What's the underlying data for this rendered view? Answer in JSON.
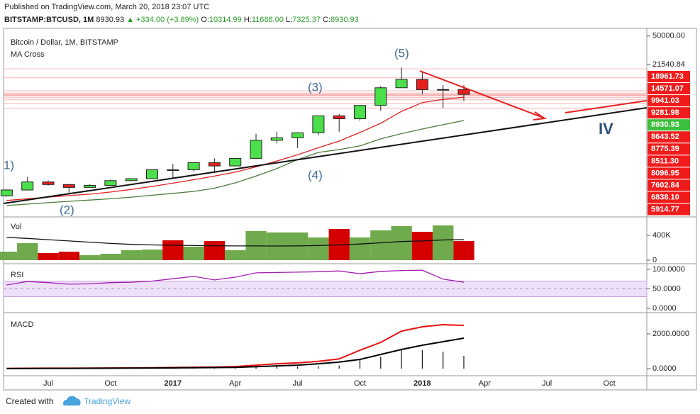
{
  "header": {
    "published": "Published on TradingView.com, March 20, 2018 23:07 UTC",
    "symbol": "BITSTAMP:BTCUSD, 1M",
    "last": "8930.93",
    "change": "▲ +334.00 (+3.89%)",
    "ohlc": [
      {
        "label": "O:",
        "value": "10314.99"
      },
      {
        "label": "H:",
        "value": "11688.00"
      },
      {
        "label": "L:",
        "value": "7325.37"
      },
      {
        "label": "C:",
        "value": "8930.93"
      }
    ]
  },
  "chart_data": [
    {
      "type": "candlestick",
      "title": "Bitcoin / Dollar, 1M, BITSTAMP",
      "subtitle": "MA Cross",
      "log": true,
      "categories": [
        null,
        null,
        "Jul",
        null,
        null,
        "Oct",
        null,
        null,
        "2017",
        null,
        null,
        "Apr",
        null,
        null,
        "Jul",
        null,
        null,
        "Oct",
        null,
        null,
        "2018",
        null,
        null,
        "Apr",
        null,
        null,
        "Jul",
        null,
        null,
        "Oct"
      ],
      "open": [
        448,
        531,
        673,
        624,
        573,
        609,
        700,
        742,
        964,
        965,
        1190,
        1080,
        1350,
        2300,
        2480,
        2870,
        4735,
        4350,
        6440,
        10850,
        13880,
        10270,
        10314.99,
        null,
        null,
        null,
        null,
        null,
        null,
        null
      ],
      "high": [
        541,
        777,
        704,
        628,
        630,
        720,
        750,
        970,
        1150,
        1200,
        1350,
        1350,
        2790,
        2980,
        2920,
        4740,
        4980,
        6470,
        11400,
        19666,
        17170,
        11780,
        11688,
        null,
        null,
        null,
        null,
        null,
        null,
        null
      ],
      "low": [
        436,
        531,
        606,
        480,
        565,
        605,
        690,
        740,
        750,
        915,
        890,
        1075,
        1350,
        2100,
        1830,
        2670,
        2970,
        4110,
        5500,
        10800,
        9030,
        5970,
        7325.37,
        null,
        null,
        null,
        null,
        null,
        null,
        null
      ],
      "close": [
        531,
        673,
        624,
        573,
        609,
        700,
        742,
        964,
        965,
        1190,
        1080,
        1350,
        2300,
        2480,
        2870,
        4735,
        4350,
        6440,
        10850,
        13880,
        10270,
        10314.99,
        8930.93,
        null,
        null,
        null,
        null,
        null,
        null,
        null
      ],
      "up_color": "#4be04b",
      "down_color": "#e81e1e",
      "series": [
        {
          "color": "#e02020",
          "values": [
            390,
            410,
            430,
            450,
            470,
            500,
            540,
            590,
            650,
            720,
            800,
            900,
            1050,
            1250,
            1500,
            1850,
            2250,
            2900,
            3800,
            5400,
            7000,
            7700,
            8200,
            null,
            null,
            null,
            null,
            null,
            null,
            null
          ]
        },
        {
          "color": "#4d7a3a",
          "values": [
            336,
            350,
            365,
            380,
            395,
            410,
            430,
            455,
            480,
            510,
            560,
            655,
            800,
            1000,
            1300,
            1610,
            1750,
            1950,
            2400,
            2800,
            3210,
            3650,
            4130,
            null,
            null,
            null,
            null,
            null,
            null,
            null
          ]
        }
      ],
      "ylim": [
        272,
        60050
      ],
      "yticks": [
        {
          "value": 50000,
          "label": "50000.00"
        },
        21540.84
      ],
      "levels": [
        {
          "value": 18961.73,
          "color": "#f01c1c"
        },
        {
          "value": 14571.07,
          "color": "#f01c1c"
        },
        {
          "value": 9941.03,
          "color": "#f01c1c"
        },
        {
          "value": 9281.98,
          "color": "#f01c1c"
        },
        {
          "value": 8930.93,
          "color": "#3cbf3c"
        },
        {
          "value": 8643.52,
          "color": "#f01c1c"
        },
        {
          "value": 8775.39,
          "color": "#f01c1c"
        },
        {
          "value": 8511.3,
          "label": "8511.30",
          "color": "#f01c1c"
        },
        {
          "value": 8096.95,
          "color": "#f01c1c"
        },
        {
          "value": 7602.84,
          "color": "#f01c1c"
        },
        {
          "value": 6838.1,
          "label": "6838.10",
          "color": "#f01c1c"
        },
        {
          "value": 5914.77,
          "color": "#f01c1c"
        }
      ],
      "annotations": [
        "(5)",
        "(3)",
        "(4)",
        "(2)",
        "1)",
        "IV"
      ]
    },
    {
      "type": "bar",
      "title": "Vol",
      "values": [
        137000,
        274000,
        114000,
        137000,
        80000,
        103000,
        160000,
        171000,
        320000,
        217000,
        309000,
        160000,
        469000,
        446000,
        446000,
        366000,
        503000,
        366000,
        480000,
        549000,
        457000,
        560000,
        309000,
        null,
        null,
        null,
        null,
        null,
        null,
        null
      ],
      "colors": [
        "#6faa4c",
        "#6faa4c",
        "#d40000",
        "#d40000",
        "#6faa4c",
        "#6faa4c",
        "#6faa4c",
        "#6faa4c",
        "#d40000",
        "#6faa4c",
        "#d40000",
        "#6faa4c",
        "#6faa4c",
        "#6faa4c",
        "#6faa4c",
        "#6faa4c",
        "#d40000",
        "#6faa4c",
        "#6faa4c",
        "#6faa4c",
        "#d40000",
        "#6faa4c",
        "#d40000",
        null,
        null,
        null,
        null,
        null,
        null,
        null
      ],
      "series": [
        {
          "color": "#111111",
          "values": [
            366000,
            350000,
            330000,
            310000,
            290000,
            270000,
            255000,
            245000,
            240000,
            235000,
            232000,
            230000,
            230000,
            228000,
            229000,
            235000,
            245000,
            260000,
            280000,
            300000,
            309000,
            325000,
            331000,
            null,
            null,
            null,
            null,
            null,
            null,
            null
          ]
        }
      ],
      "ylim": [
        0,
        628000
      ],
      "yticks": [
        {
          "value": 400000,
          "label": "400K"
        },
        0
      ]
    },
    {
      "type": "line",
      "title": "RSI",
      "band": [
        30,
        70
      ],
      "band_color": "#efe0fa",
      "series": [
        {
          "color": "#a21caf",
          "values": [
            60,
            69,
            66,
            62,
            63,
            66,
            67,
            70,
            76,
            82,
            73,
            80,
            91,
            92,
            93,
            94,
            96,
            89,
            95,
            97,
            98,
            75,
            67,
            null,
            null,
            null,
            null,
            null,
            null,
            null
          ]
        }
      ],
      "ylim": [
        0,
        100
      ],
      "yticks": [
        {
          "value": 100,
          "label": "100.0000"
        },
        {
          "value": 50,
          "label": "50.0000"
        },
        {
          "value": 0,
          "label": "0.0000"
        }
      ]
    },
    {
      "type": "line",
      "title": "MACD",
      "series": [
        {
          "color": "#e81010",
          "values": [
            10,
            20,
            25,
            25,
            30,
            35,
            40,
            55,
            65,
            80,
            95,
            120,
            200,
            280,
            330,
            420,
            560,
            1060,
            1510,
            2160,
            2410,
            2530,
            2490,
            null,
            null,
            null,
            null,
            null,
            null,
            null
          ]
        },
        {
          "color": "#000000",
          "values": [
            5,
            10,
            15,
            18,
            20,
            24,
            28,
            35,
            42,
            50,
            60,
            75,
            110,
            160,
            200,
            280,
            380,
            530,
            816,
            1100,
            1347,
            1550,
            1755,
            null,
            null,
            null,
            null,
            null,
            null,
            null
          ]
        }
      ],
      "histogram": {
        "color": "#111111",
        "values": [
          5,
          10,
          10,
          7,
          10,
          11,
          12,
          20,
          23,
          30,
          35,
          45,
          90,
          120,
          130,
          140,
          180,
          530,
          694,
          1060,
          1063,
          980,
          735,
          null,
          null,
          null,
          null,
          null,
          null,
          null
        ]
      },
      "ylim": [
        -408,
        3061
      ],
      "yticks": [
        {
          "value": 2000,
          "label": "2000.0000"
        },
        {
          "value": 0,
          "label": "0.0000"
        }
      ]
    }
  ],
  "footer": {
    "created": "Created with",
    "brand": "TradingView"
  }
}
